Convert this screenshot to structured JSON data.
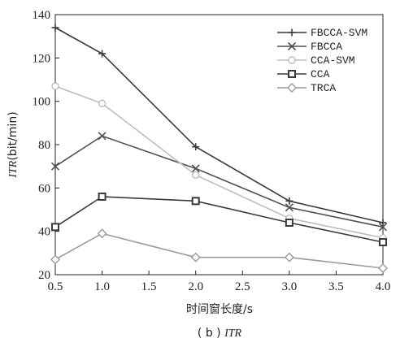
{
  "chart_data": {
    "type": "line",
    "x": [
      0.5,
      1.0,
      2.0,
      3.0,
      4.0
    ],
    "xlim": [
      0.5,
      4.0
    ],
    "ylim": [
      20,
      140
    ],
    "xticks": [
      "0.5",
      "1.0",
      "1.5",
      "2.0",
      "2.5",
      "3.0",
      "3.5",
      "4.0"
    ],
    "yticks": [
      "20",
      "40",
      "60",
      "80",
      "100",
      "120",
      "140"
    ],
    "xlabel": "时间窗长度/s",
    "ylabel_italic": "ITR",
    "ylabel_rest": "(bit/min)",
    "caption_prefix": "( b ) ",
    "caption_italic": "ITR",
    "legend_position": "top-right",
    "series": [
      {
        "name": "FBCCA-SVM",
        "marker": "plus",
        "color": "#3a3a3a",
        "values": [
          134,
          122,
          79,
          54,
          44
        ]
      },
      {
        "name": "FBCCA",
        "marker": "x",
        "color": "#505050",
        "values": [
          70,
          84,
          69,
          51,
          42
        ]
      },
      {
        "name": "CCA-SVM",
        "marker": "circle",
        "color": "#bdbdbd",
        "values": [
          107,
          99,
          66,
          46,
          37
        ]
      },
      {
        "name": "CCA",
        "marker": "square",
        "color": "#3a3a3a",
        "values": [
          42,
          56,
          54,
          44,
          35
        ]
      },
      {
        "name": "TRCA",
        "marker": "diamond",
        "color": "#9a9a9a",
        "values": [
          27,
          39,
          28,
          28,
          23
        ]
      }
    ]
  }
}
